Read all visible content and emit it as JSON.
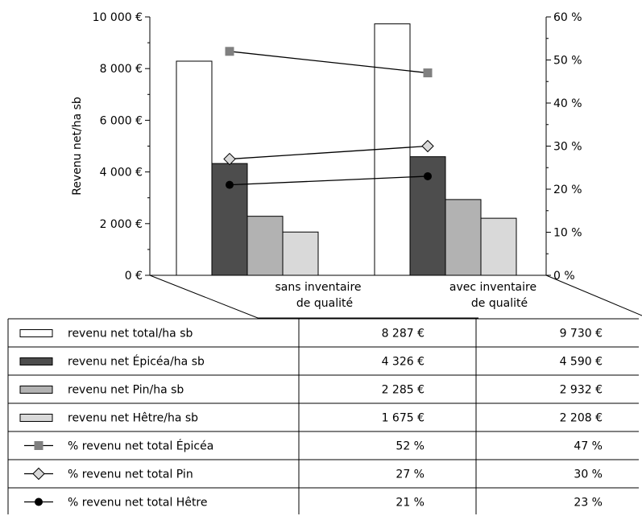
{
  "chart_data": {
    "type": "bar",
    "ylabel": "Revenu net/ha sb",
    "y_left": {
      "ylim": [
        0,
        10000
      ],
      "ticks": [
        0,
        2000,
        4000,
        6000,
        8000,
        10000
      ],
      "tick_labels": [
        "0 €",
        "2 000 €",
        "4 000 €",
        "6 000 €",
        "8 000 €",
        "10 000 €"
      ]
    },
    "y_right": {
      "ylim": [
        0,
        60
      ],
      "ticks": [
        0,
        10,
        20,
        30,
        40,
        50,
        60
      ],
      "tick_labels": [
        "0 %",
        "10 %",
        "20 %",
        "30 %",
        "40 %",
        "50 %",
        "60 %"
      ]
    },
    "categories": [
      [
        "sans inventaire",
        "de qualité"
      ],
      [
        "avec inventaire",
        "de qualité"
      ]
    ],
    "bar_series": [
      {
        "name": "revenu net total/ha sb",
        "values": [
          8287,
          9730
        ],
        "labels": [
          "8 287 €",
          "9 730 €"
        ],
        "color": "#ffffff"
      },
      {
        "name": "revenu net Épicéa/ha sb",
        "values": [
          4326,
          4590
        ],
        "labels": [
          "4 326 €",
          "4 590 €"
        ],
        "color": "#4d4d4d"
      },
      {
        "name": "revenu net Pin/ha sb",
        "values": [
          2285,
          2932
        ],
        "labels": [
          "2 285 €",
          "2 932 €"
        ],
        "color": "#b2b2b2"
      },
      {
        "name": "revenu net Hêtre/ha sb",
        "values": [
          1675,
          2208
        ],
        "labels": [
          "1 675 €",
          "2 208 €"
        ],
        "color": "#d9d9d9"
      }
    ],
    "line_series": [
      {
        "name": "% revenu net total Épicéa",
        "values": [
          52,
          47
        ],
        "labels": [
          "52 %",
          "47 %"
        ],
        "marker": "square",
        "color": "#808080"
      },
      {
        "name": "% revenu net total Pin",
        "values": [
          27,
          30
        ],
        "labels": [
          "27 %",
          "30 %"
        ],
        "marker": "diamond",
        "color": "#d9d9d9"
      },
      {
        "name": "% revenu net total Hêtre",
        "values": [
          21,
          23
        ],
        "labels": [
          "21 %",
          "23 %"
        ],
        "marker": "circle",
        "color": "#000000"
      }
    ]
  }
}
